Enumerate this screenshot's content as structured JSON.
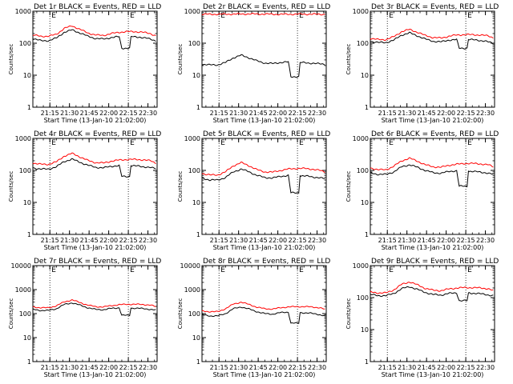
{
  "chart_data": [
    {
      "type": "line",
      "title": "Det 1r BLACK = Events, RED = LLD",
      "xlabel": "Start Time (13-Jan-10 21:02:00)",
      "ylabel": "Counts/sec",
      "y_scale": "log",
      "ylim": [
        1,
        1000
      ],
      "xlim_minutes_after_start": [
        0,
        95
      ],
      "x_tick_labels": [
        "21:15",
        "21:30",
        "21:45",
        "22:00",
        "22:15",
        "22:30"
      ],
      "y_tick_labels": [
        "1",
        "10",
        "100",
        "1000"
      ],
      "vlines_dotted": [
        "21:15",
        "22:15"
      ],
      "markers": [
        "E",
        "E"
      ],
      "series": [
        {
          "color": "#ff0000",
          "x": [
            0,
            6,
            12,
            18,
            24,
            30,
            36,
            42,
            48,
            54,
            60,
            66,
            72,
            78,
            84,
            90,
            94
          ],
          "y": [
            180,
            165,
            165,
            190,
            290,
            350,
            270,
            210,
            180,
            175,
            200,
            220,
            230,
            230,
            220,
            200,
            170
          ]
        },
        {
          "color": "#000000",
          "x": [
            0,
            6,
            12,
            18,
            24,
            30,
            36,
            42,
            48,
            54,
            60,
            66,
            68,
            74,
            75,
            82,
            88,
            94
          ],
          "y": [
            140,
            120,
            120,
            145,
            220,
            260,
            210,
            165,
            140,
            135,
            150,
            160,
            70,
            70,
            160,
            155,
            140,
            120
          ]
        }
      ]
    },
    {
      "type": "line",
      "title": "Det 2r BLACK = Events, RED = LLD",
      "xlabel": "Start Time (13-Jan-10 21:02:00)",
      "ylabel": "Counts/sec",
      "y_scale": "log",
      "ylim": [
        1,
        1000
      ],
      "xlim_minutes_after_start": [
        0,
        95
      ],
      "x_tick_labels": [
        "21:15",
        "21:30",
        "21:45",
        "22:00",
        "22:15",
        "22:30"
      ],
      "y_tick_labels": [
        "1",
        "10",
        "100",
        "1000"
      ],
      "vlines_dotted": [
        "21:15",
        "22:15"
      ],
      "markers": [
        "E",
        "E"
      ],
      "series": [
        {
          "color": "#ff0000",
          "x": [
            0,
            20,
            40,
            60,
            80,
            94
          ],
          "y": [
            800,
            810,
            820,
            800,
            810,
            800
          ]
        },
        {
          "color": "#000000",
          "x": [
            0,
            6,
            12,
            18,
            24,
            30,
            36,
            42,
            48,
            54,
            60,
            66,
            68,
            74,
            75,
            82,
            88,
            94
          ],
          "y": [
            22,
            21,
            21,
            25,
            35,
            42,
            35,
            28,
            24,
            23,
            25,
            26,
            9,
            9,
            25,
            24,
            23,
            22
          ]
        }
      ]
    },
    {
      "type": "line",
      "title": "Det 3r BLACK = Events, RED = LLD",
      "xlabel": "Start Time (13-Jan-10 21:02:00)",
      "ylabel": "Counts/sec",
      "y_scale": "log",
      "ylim": [
        1,
        1000
      ],
      "xlim_minutes_after_start": [
        0,
        95
      ],
      "x_tick_labels": [
        "21:15",
        "21:30",
        "21:45",
        "22:00",
        "22:15",
        "22:30"
      ],
      "y_tick_labels": [
        "1",
        "10",
        "100",
        "1000"
      ],
      "vlines_dotted": [
        "21:15",
        "22:15"
      ],
      "markers": [
        "E",
        "E"
      ],
      "series": [
        {
          "color": "#ff0000",
          "x": [
            0,
            6,
            12,
            18,
            24,
            30,
            36,
            42,
            48,
            54,
            60,
            66,
            72,
            78,
            84,
            90,
            94
          ],
          "y": [
            140,
            130,
            130,
            160,
            230,
            270,
            220,
            175,
            150,
            145,
            165,
            180,
            185,
            185,
            180,
            170,
            150
          ]
        },
        {
          "color": "#000000",
          "x": [
            0,
            6,
            12,
            18,
            24,
            30,
            36,
            42,
            48,
            54,
            60,
            66,
            68,
            74,
            75,
            82,
            88,
            94
          ],
          "y": [
            115,
            105,
            105,
            125,
            180,
            210,
            170,
            135,
            115,
            110,
            125,
            130,
            70,
            70,
            130,
            125,
            115,
            100
          ]
        }
      ]
    },
    {
      "type": "line",
      "title": "Det 4r BLACK = Events, RED = LLD",
      "xlabel": "Start Time (13-Jan-10 21:02:00)",
      "ylabel": "Counts/sec",
      "y_scale": "log",
      "ylim": [
        1,
        1000
      ],
      "xlim_minutes_after_start": [
        0,
        95
      ],
      "x_tick_labels": [
        "21:15",
        "21:30",
        "21:45",
        "22:00",
        "22:15",
        "22:30"
      ],
      "y_tick_labels": [
        "1",
        "10",
        "100",
        "1000"
      ],
      "vlines_dotted": [
        "21:15",
        "22:15"
      ],
      "markers": [
        "E",
        "E"
      ],
      "series": [
        {
          "color": "#ff0000",
          "x": [
            0,
            6,
            12,
            18,
            24,
            30,
            36,
            42,
            48,
            54,
            60,
            66,
            72,
            78,
            84,
            90,
            94
          ],
          "y": [
            170,
            155,
            155,
            185,
            280,
            340,
            265,
            205,
            175,
            170,
            195,
            210,
            220,
            220,
            215,
            200,
            170
          ]
        },
        {
          "color": "#000000",
          "x": [
            0,
            6,
            12,
            18,
            24,
            30,
            36,
            42,
            48,
            54,
            60,
            66,
            68,
            74,
            75,
            82,
            88,
            94
          ],
          "y": [
            120,
            110,
            110,
            130,
            190,
            225,
            180,
            145,
            125,
            120,
            135,
            140,
            65,
            65,
            140,
            135,
            125,
            115
          ]
        }
      ]
    },
    {
      "type": "line",
      "title": "Det 5r BLACK = Events, RED = LLD",
      "xlabel": "Start Time (13-Jan-10 21:02:00)",
      "ylabel": "Counts/sec",
      "y_scale": "log",
      "ylim": [
        1,
        1000
      ],
      "xlim_minutes_after_start": [
        0,
        95
      ],
      "x_tick_labels": [
        "21:15",
        "21:30",
        "21:45",
        "22:00",
        "22:15",
        "22:30"
      ],
      "y_tick_labels": [
        "1",
        "10",
        "100",
        "1000"
      ],
      "vlines_dotted": [
        "21:15",
        "22:15"
      ],
      "markers": [
        "E",
        "E"
      ],
      "series": [
        {
          "color": "#ff0000",
          "x": [
            0,
            6,
            12,
            18,
            24,
            30,
            36,
            42,
            48,
            54,
            60,
            66,
            72,
            78,
            84,
            90,
            94
          ],
          "y": [
            80,
            72,
            72,
            90,
            140,
            175,
            140,
            105,
            90,
            88,
            100,
            110,
            115,
            115,
            110,
            100,
            90
          ]
        },
        {
          "color": "#000000",
          "x": [
            0,
            6,
            12,
            18,
            24,
            30,
            36,
            42,
            48,
            54,
            60,
            66,
            68,
            74,
            75,
            82,
            88,
            94
          ],
          "y": [
            58,
            50,
            50,
            60,
            90,
            110,
            90,
            70,
            60,
            58,
            65,
            70,
            20,
            20,
            68,
            65,
            60,
            55
          ]
        }
      ]
    },
    {
      "type": "line",
      "title": "Det 6r BLACK = Events, RED = LLD",
      "xlabel": "Start Time (13-Jan-10 21:02:00)",
      "ylabel": "Counts/sec",
      "y_scale": "log",
      "ylim": [
        1,
        1000
      ],
      "xlim_minutes_after_start": [
        0,
        95
      ],
      "x_tick_labels": [
        "21:15",
        "21:30",
        "21:45",
        "22:00",
        "22:15",
        "22:30"
      ],
      "y_tick_labels": [
        "1",
        "10",
        "100",
        "1000"
      ],
      "vlines_dotted": [
        "21:15",
        "22:15"
      ],
      "markers": [
        "E",
        "E"
      ],
      "series": [
        {
          "color": "#ff0000",
          "x": [
            0,
            6,
            12,
            18,
            24,
            30,
            36,
            42,
            48,
            54,
            60,
            66,
            72,
            78,
            84,
            90,
            94
          ],
          "y": [
            120,
            105,
            105,
            135,
            200,
            240,
            195,
            150,
            130,
            125,
            145,
            155,
            165,
            165,
            160,
            150,
            130
          ]
        },
        {
          "color": "#000000",
          "x": [
            0,
            6,
            12,
            18,
            24,
            30,
            36,
            42,
            48,
            54,
            60,
            66,
            68,
            74,
            75,
            82,
            88,
            94
          ],
          "y": [
            85,
            75,
            75,
            90,
            130,
            150,
            125,
            100,
            85,
            82,
            92,
            98,
            32,
            32,
            95,
            90,
            85,
            75
          ]
        }
      ]
    },
    {
      "type": "line",
      "title": "Det 7r BLACK = Events, RED = LLD",
      "xlabel": "Start Time (13-Jan-10 21:02:00)",
      "ylabel": "Counts/sec",
      "y_scale": "log",
      "ylim": [
        1,
        10000
      ],
      "xlim_minutes_after_start": [
        0,
        95
      ],
      "x_tick_labels": [
        "21:15",
        "21:30",
        "21:45",
        "22:00",
        "22:15",
        "22:30"
      ],
      "y_tick_labels": [
        "1",
        "10",
        "100",
        "1000",
        "10000"
      ],
      "vlines_dotted": [
        "21:15",
        "22:15"
      ],
      "markers": [
        "E",
        "E"
      ],
      "series": [
        {
          "color": "#ff0000",
          "x": [
            0,
            6,
            12,
            18,
            24,
            30,
            36,
            42,
            48,
            54,
            60,
            66,
            72,
            78,
            84,
            90,
            94
          ],
          "y": [
            190,
            175,
            175,
            210,
            310,
            370,
            290,
            225,
            195,
            190,
            215,
            235,
            245,
            245,
            240,
            225,
            195
          ]
        },
        {
          "color": "#000000",
          "x": [
            0,
            6,
            12,
            18,
            24,
            30,
            36,
            42,
            48,
            54,
            60,
            66,
            68,
            74,
            75,
            82,
            88,
            94
          ],
          "y": [
            150,
            135,
            135,
            160,
            240,
            280,
            225,
            175,
            150,
            145,
            165,
            175,
            85,
            85,
            170,
            165,
            155,
            140
          ]
        }
      ]
    },
    {
      "type": "line",
      "title": "Det 8r BLACK = Events, RED = LLD",
      "xlabel": "Start Time (13-Jan-10 21:02:00)",
      "ylabel": "Counts/sec",
      "y_scale": "log",
      "ylim": [
        1,
        10000
      ],
      "xlim_minutes_after_start": [
        0,
        95
      ],
      "x_tick_labels": [
        "21:15",
        "21:30",
        "21:45",
        "22:00",
        "22:15",
        "22:30"
      ],
      "y_tick_labels": [
        "1",
        "10",
        "100",
        "1000",
        "10000"
      ],
      "vlines_dotted": [
        "21:15",
        "22:15"
      ],
      "markers": [
        "E",
        "E"
      ],
      "series": [
        {
          "color": "#ff0000",
          "x": [
            0,
            6,
            12,
            18,
            24,
            30,
            36,
            42,
            48,
            54,
            60,
            66,
            72,
            78,
            84,
            90,
            94
          ],
          "y": [
            130,
            120,
            120,
            160,
            250,
            300,
            240,
            185,
            160,
            155,
            175,
            190,
            195,
            195,
            190,
            175,
            150
          ]
        },
        {
          "color": "#000000",
          "x": [
            0,
            6,
            12,
            18,
            24,
            30,
            36,
            42,
            48,
            54,
            60,
            66,
            68,
            74,
            75,
            82,
            88,
            94
          ],
          "y": [
            90,
            80,
            80,
            100,
            160,
            190,
            155,
            120,
            100,
            95,
            110,
            115,
            40,
            40,
            110,
            105,
            95,
            80
          ]
        }
      ]
    },
    {
      "type": "line",
      "title": "Det 9r BLACK = Events, RED = LLD",
      "xlabel": "Start Time (13-Jan-10 21:02:00)",
      "ylabel": "Counts/sec",
      "y_scale": "log",
      "ylim": [
        1,
        1000
      ],
      "xlim_minutes_after_start": [
        0,
        95
      ],
      "x_tick_labels": [
        "21:15",
        "21:30",
        "21:45",
        "22:00",
        "22:15",
        "22:30"
      ],
      "y_tick_labels": [
        "1",
        "10",
        "100",
        "1000"
      ],
      "vlines_dotted": [
        "21:15",
        "22:15"
      ],
      "markers": [
        "E",
        "E"
      ],
      "series": [
        {
          "color": "#ff0000",
          "x": [
            0,
            6,
            12,
            18,
            24,
            30,
            36,
            42,
            48,
            54,
            60,
            66,
            72,
            78,
            84,
            90,
            94
          ],
          "y": [
            150,
            140,
            140,
            175,
            260,
            310,
            250,
            195,
            170,
            165,
            185,
            200,
            205,
            205,
            200,
            190,
            165
          ]
        },
        {
          "color": "#000000",
          "x": [
            0,
            6,
            12,
            18,
            24,
            30,
            36,
            42,
            48,
            54,
            60,
            66,
            68,
            74,
            75,
            82,
            88,
            94
          ],
          "y": [
            125,
            115,
            115,
            135,
            190,
            220,
            180,
            145,
            125,
            120,
            135,
            140,
            80,
            80,
            140,
            135,
            125,
            115
          ]
        }
      ]
    }
  ]
}
